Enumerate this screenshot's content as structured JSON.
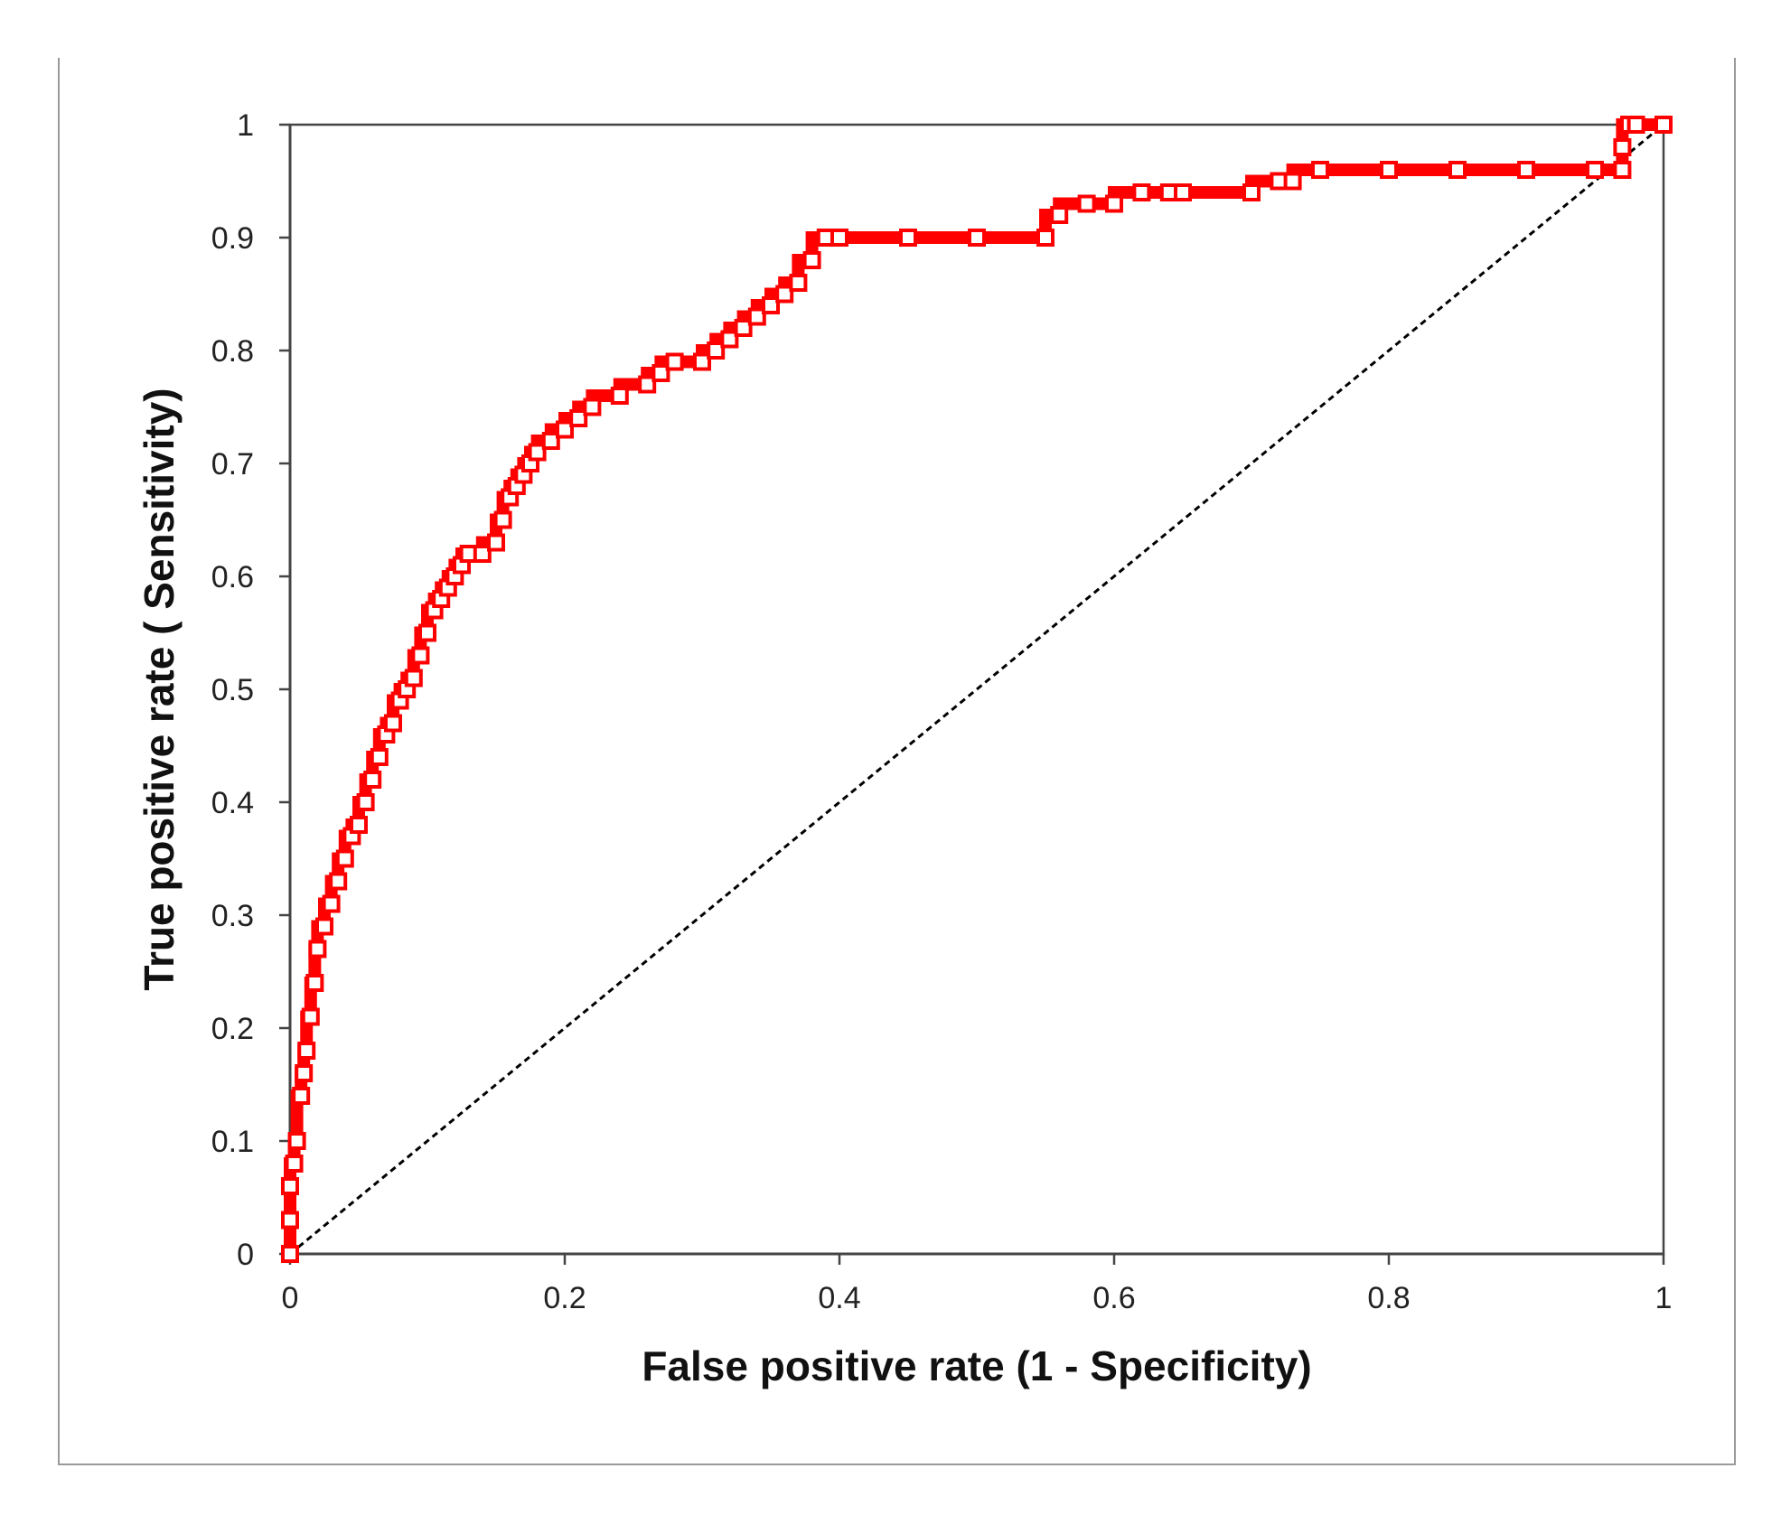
{
  "chart_data": {
    "type": "line",
    "title": "",
    "xlabel": "False positive rate (1 - Specificity)",
    "ylabel": "True positive rate ( Sensitivity)",
    "xlim": [
      0,
      1
    ],
    "ylim": [
      0,
      1
    ],
    "x_ticks": [
      "0",
      "0.2",
      "0.4",
      "0.6",
      "0.8",
      "1"
    ],
    "y_ticks": [
      "0",
      "0.1",
      "0.2",
      "0.3",
      "0.4",
      "0.5",
      "0.6",
      "0.7",
      "0.8",
      "0.9",
      "1"
    ],
    "grid": false,
    "legend": "none",
    "colors": {
      "roc": "#ff0000",
      "reference": "#000000",
      "axis": "#444444"
    },
    "series": [
      {
        "marker": "hollow-square",
        "style": "solid",
        "x": [
          0,
          0,
          0,
          0.003,
          0.005,
          0.008,
          0.01,
          0.012,
          0.015,
          0.018,
          0.02,
          0.025,
          0.03,
          0.035,
          0.04,
          0.045,
          0.05,
          0.055,
          0.06,
          0.065,
          0.07,
          0.075,
          0.08,
          0.085,
          0.09,
          0.095,
          0.1,
          0.105,
          0.11,
          0.115,
          0.12,
          0.125,
          0.13,
          0.14,
          0.15,
          0.155,
          0.16,
          0.165,
          0.17,
          0.175,
          0.18,
          0.19,
          0.2,
          0.21,
          0.22,
          0.24,
          0.26,
          0.27,
          0.28,
          0.3,
          0.31,
          0.32,
          0.33,
          0.34,
          0.35,
          0.36,
          0.37,
          0.38,
          0.39,
          0.4,
          0.45,
          0.5,
          0.55,
          0.56,
          0.58,
          0.6,
          0.62,
          0.64,
          0.65,
          0.7,
          0.72,
          0.73,
          0.75,
          0.8,
          0.85,
          0.9,
          0.95,
          0.97,
          0.97,
          0.975,
          0.98,
          1.0
        ],
        "y": [
          0,
          0.03,
          0.06,
          0.08,
          0.1,
          0.14,
          0.16,
          0.18,
          0.21,
          0.24,
          0.27,
          0.29,
          0.31,
          0.33,
          0.35,
          0.37,
          0.38,
          0.4,
          0.42,
          0.44,
          0.46,
          0.47,
          0.49,
          0.5,
          0.51,
          0.53,
          0.55,
          0.57,
          0.58,
          0.59,
          0.6,
          0.61,
          0.62,
          0.62,
          0.63,
          0.65,
          0.67,
          0.68,
          0.69,
          0.7,
          0.71,
          0.72,
          0.73,
          0.74,
          0.75,
          0.76,
          0.77,
          0.78,
          0.79,
          0.79,
          0.8,
          0.81,
          0.82,
          0.83,
          0.84,
          0.85,
          0.86,
          0.88,
          0.9,
          0.9,
          0.9,
          0.9,
          0.9,
          0.92,
          0.93,
          0.93,
          0.94,
          0.94,
          0.94,
          0.94,
          0.95,
          0.95,
          0.96,
          0.96,
          0.96,
          0.96,
          0.96,
          0.96,
          0.98,
          1.0,
          1.0,
          1.0
        ]
      },
      {
        "style": "dashed",
        "x": [
          0,
          1
        ],
        "y": [
          0,
          1
        ]
      }
    ]
  }
}
